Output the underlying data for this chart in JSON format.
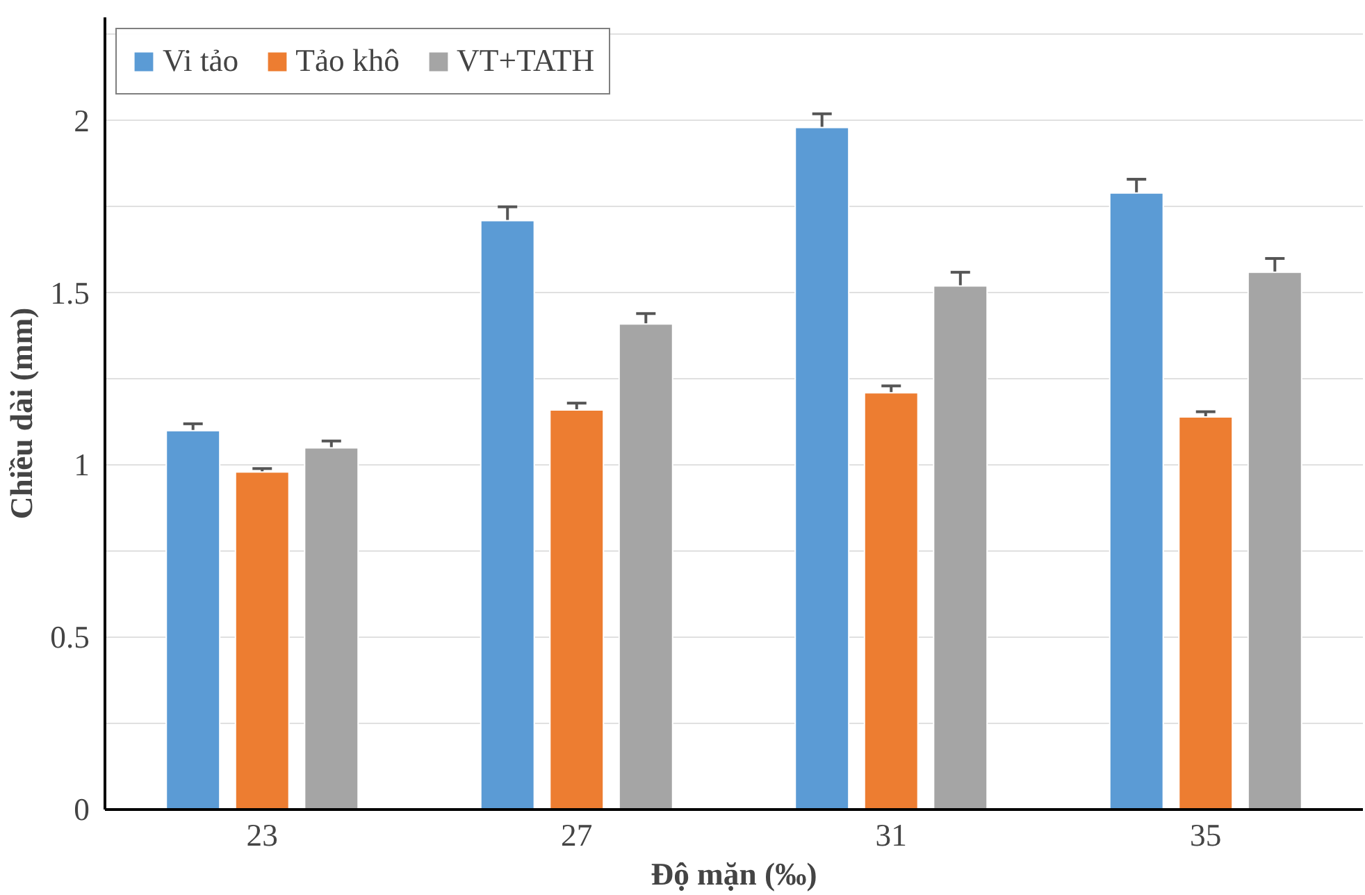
{
  "chart_data": {
    "type": "bar",
    "xlabel": "Độ mặn (‰)",
    "ylabel": "Chiều dài (mm)",
    "categories": [
      "23",
      "27",
      "31",
      "35"
    ],
    "series": [
      {
        "name": "Vi tảo",
        "color": "#5b9bd5",
        "values": [
          1.1,
          1.71,
          1.98,
          1.79
        ],
        "errors": [
          0.02,
          0.04,
          0.04,
          0.04
        ]
      },
      {
        "name": "Tảo khô",
        "color": "#ed7d31",
        "values": [
          0.98,
          1.16,
          1.21,
          1.14
        ],
        "errors": [
          0.01,
          0.02,
          0.02,
          0.015
        ]
      },
      {
        "name": "VT+TATH",
        "color": "#a5a5a5",
        "values": [
          1.05,
          1.41,
          1.52,
          1.56
        ],
        "errors": [
          0.02,
          0.03,
          0.04,
          0.04
        ]
      }
    ],
    "ylim": [
      0,
      2.3
    ],
    "yticks": [
      0,
      {
        "value": 0.25,
        "label": null
      },
      0.5,
      {
        "value": 0.75,
        "label": null
      },
      1,
      {
        "value": 1.25,
        "label": null
      },
      1.5,
      {
        "value": 1.75,
        "label": null
      },
      2,
      {
        "value": 2.25,
        "label": null
      }
    ],
    "grid": "y",
    "legend": "top left"
  }
}
